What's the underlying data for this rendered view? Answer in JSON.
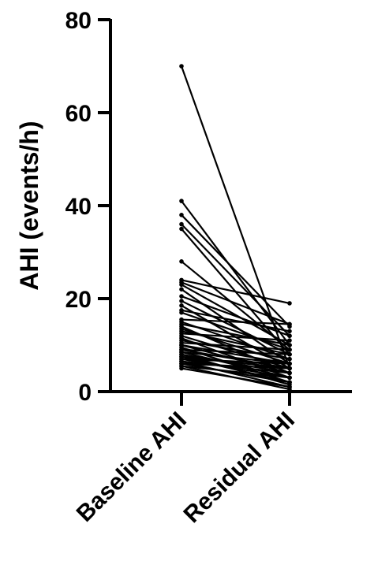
{
  "chart_data": {
    "type": "line",
    "title": "",
    "xlabel": "",
    "ylabel": "AHI (events/h)",
    "categories": [
      "Baseline AHI",
      "Residual AHI"
    ],
    "ylim": [
      0,
      80
    ],
    "yticks": [
      0,
      20,
      40,
      60,
      80
    ],
    "grid": false,
    "legend": "none",
    "line_color": "#000000",
    "pairs": [
      [
        70,
        5
      ],
      [
        41,
        10
      ],
      [
        38,
        14
      ],
      [
        36,
        12
      ],
      [
        35,
        8
      ],
      [
        28,
        9
      ],
      [
        24,
        19
      ],
      [
        23.5,
        14.5
      ],
      [
        23,
        10
      ],
      [
        22,
        6
      ],
      [
        20.5,
        12
      ],
      [
        19.5,
        8
      ],
      [
        18.5,
        5
      ],
      [
        17.5,
        13
      ],
      [
        17,
        9
      ],
      [
        15.5,
        14.5
      ],
      [
        15,
        7
      ],
      [
        14.5,
        10
      ],
      [
        14,
        4
      ],
      [
        13.5,
        6
      ],
      [
        13,
        8
      ],
      [
        12.5,
        11
      ],
      [
        12,
        5
      ],
      [
        11.5,
        3
      ],
      [
        11,
        7
      ],
      [
        10.5,
        9
      ],
      [
        10,
        4
      ],
      [
        10,
        6
      ],
      [
        9.5,
        2
      ],
      [
        9,
        5
      ],
      [
        9,
        8
      ],
      [
        8.5,
        3
      ],
      [
        8.5,
        6
      ],
      [
        8,
        1.5
      ],
      [
        8,
        4
      ],
      [
        7.5,
        5
      ],
      [
        7.5,
        2
      ],
      [
        7,
        3
      ],
      [
        7,
        6
      ],
      [
        6.5,
        1
      ],
      [
        6.5,
        4
      ],
      [
        6,
        2
      ],
      [
        6,
        5
      ],
      [
        5.5,
        0.5
      ],
      [
        5.5,
        3
      ],
      [
        5,
        1
      ]
    ]
  }
}
